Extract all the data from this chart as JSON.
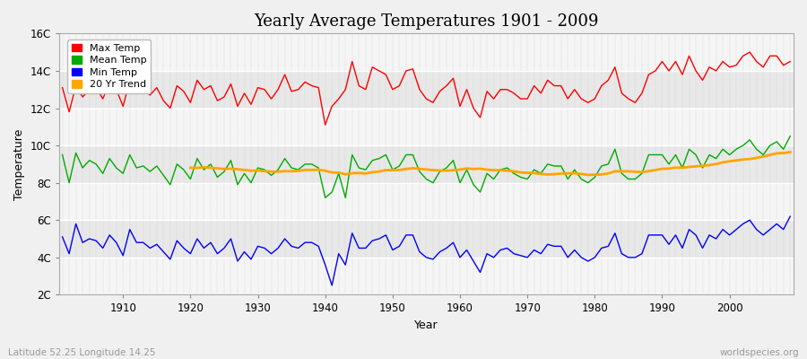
{
  "title": "Yearly Average Temperatures 1901 - 2009",
  "xlabel": "Year",
  "ylabel": "Temperature",
  "subtitle_left": "Latitude 52.25 Longitude 14.25",
  "subtitle_right": "worldspecies.org",
  "legend_entries": [
    "Max Temp",
    "Mean Temp",
    "Min Temp",
    "20 Yr Trend"
  ],
  "legend_colors": [
    "#ff0000",
    "#00aa00",
    "#0000ff",
    "#ffa500"
  ],
  "line_colors": [
    "#ff0000",
    "#00aa00",
    "#0000ff",
    "#ffa500"
  ],
  "years": [
    1901,
    1902,
    1903,
    1904,
    1905,
    1906,
    1907,
    1908,
    1909,
    1910,
    1911,
    1912,
    1913,
    1914,
    1915,
    1916,
    1917,
    1918,
    1919,
    1920,
    1921,
    1922,
    1923,
    1924,
    1925,
    1926,
    1927,
    1928,
    1929,
    1930,
    1931,
    1932,
    1933,
    1934,
    1935,
    1936,
    1937,
    1938,
    1939,
    1940,
    1941,
    1942,
    1943,
    1944,
    1945,
    1946,
    1947,
    1948,
    1949,
    1950,
    1951,
    1952,
    1953,
    1954,
    1955,
    1956,
    1957,
    1958,
    1959,
    1960,
    1961,
    1962,
    1963,
    1964,
    1965,
    1966,
    1967,
    1968,
    1969,
    1970,
    1971,
    1972,
    1973,
    1974,
    1975,
    1976,
    1977,
    1978,
    1979,
    1980,
    1981,
    1982,
    1983,
    1984,
    1985,
    1986,
    1987,
    1988,
    1989,
    1990,
    1991,
    1992,
    1993,
    1994,
    1995,
    1996,
    1997,
    1998,
    1999,
    2000,
    2001,
    2002,
    2003,
    2004,
    2005,
    2006,
    2007,
    2008,
    2009
  ],
  "max_temp": [
    13.1,
    11.8,
    13.2,
    12.6,
    13.0,
    13.1,
    12.5,
    13.4,
    13.0,
    12.1,
    13.5,
    12.8,
    13.0,
    12.7,
    13.1,
    12.4,
    12.0,
    13.2,
    12.9,
    12.3,
    13.5,
    13.0,
    13.2,
    12.4,
    12.6,
    13.3,
    12.1,
    12.8,
    12.2,
    13.1,
    13.0,
    12.5,
    13.0,
    13.8,
    12.9,
    13.0,
    13.4,
    13.2,
    13.1,
    11.1,
    12.1,
    12.5,
    13.0,
    14.5,
    13.2,
    13.0,
    14.2,
    14.0,
    13.8,
    13.0,
    13.2,
    14.0,
    14.1,
    13.0,
    12.5,
    12.3,
    12.9,
    13.2,
    13.6,
    12.1,
    13.0,
    12.0,
    11.5,
    12.9,
    12.5,
    13.0,
    13.0,
    12.8,
    12.5,
    12.5,
    13.2,
    12.8,
    13.5,
    13.2,
    13.2,
    12.5,
    13.0,
    12.5,
    12.3,
    12.5,
    13.2,
    13.5,
    14.2,
    12.8,
    12.5,
    12.3,
    12.8,
    13.8,
    14.0,
    14.5,
    14.0,
    14.5,
    13.8,
    14.8,
    14.0,
    13.5,
    14.2,
    14.0,
    14.5,
    14.2,
    14.3,
    14.8,
    15.0,
    14.5,
    14.2,
    14.8,
    14.8,
    14.3,
    14.5
  ],
  "mean_temp": [
    9.5,
    8.0,
    9.6,
    8.8,
    9.2,
    9.0,
    8.5,
    9.3,
    8.8,
    8.5,
    9.5,
    8.8,
    8.9,
    8.6,
    8.9,
    8.4,
    7.9,
    9.0,
    8.7,
    8.2,
    9.3,
    8.7,
    9.0,
    8.3,
    8.6,
    9.2,
    7.9,
    8.5,
    8.0,
    8.8,
    8.7,
    8.4,
    8.7,
    9.3,
    8.8,
    8.7,
    9.0,
    9.0,
    8.8,
    7.2,
    7.5,
    8.5,
    7.2,
    9.5,
    8.8,
    8.7,
    9.2,
    9.3,
    9.5,
    8.7,
    8.9,
    9.5,
    9.5,
    8.6,
    8.2,
    8.0,
    8.6,
    8.8,
    9.2,
    8.0,
    8.7,
    7.9,
    7.5,
    8.5,
    8.2,
    8.7,
    8.8,
    8.5,
    8.3,
    8.2,
    8.7,
    8.5,
    9.0,
    8.9,
    8.9,
    8.2,
    8.7,
    8.2,
    8.0,
    8.3,
    8.9,
    9.0,
    9.8,
    8.5,
    8.2,
    8.2,
    8.5,
    9.5,
    9.5,
    9.5,
    9.0,
    9.5,
    8.8,
    9.8,
    9.5,
    8.8,
    9.5,
    9.3,
    9.8,
    9.5,
    9.8,
    10.0,
    10.3,
    9.8,
    9.5,
    10.0,
    10.2,
    9.8,
    10.5
  ],
  "min_temp": [
    5.1,
    4.2,
    5.8,
    4.8,
    5.0,
    4.9,
    4.5,
    5.2,
    4.8,
    4.1,
    5.5,
    4.8,
    4.8,
    4.5,
    4.7,
    4.3,
    3.9,
    4.9,
    4.5,
    4.2,
    5.0,
    4.5,
    4.8,
    4.2,
    4.5,
    5.0,
    3.8,
    4.3,
    3.9,
    4.6,
    4.5,
    4.2,
    4.5,
    5.0,
    4.6,
    4.5,
    4.8,
    4.8,
    4.6,
    3.6,
    2.5,
    4.2,
    3.6,
    5.3,
    4.5,
    4.5,
    4.9,
    5.0,
    5.2,
    4.4,
    4.6,
    5.2,
    5.2,
    4.3,
    4.0,
    3.9,
    4.3,
    4.5,
    4.8,
    4.0,
    4.4,
    3.8,
    3.2,
    4.2,
    4.0,
    4.4,
    4.5,
    4.2,
    4.1,
    4.0,
    4.4,
    4.2,
    4.7,
    4.6,
    4.6,
    4.0,
    4.4,
    4.0,
    3.8,
    4.0,
    4.5,
    4.6,
    5.3,
    4.2,
    4.0,
    4.0,
    4.2,
    5.2,
    5.2,
    5.2,
    4.7,
    5.2,
    4.5,
    5.5,
    5.2,
    4.5,
    5.2,
    5.0,
    5.5,
    5.2,
    5.5,
    5.8,
    6.0,
    5.5,
    5.2,
    5.5,
    5.8,
    5.5,
    6.2
  ],
  "bg_color": "#f0f0f0",
  "plot_bg_color": "#e8e8e8",
  "grid_color_h": "#ffffff",
  "grid_color_v": "#cccccc",
  "ylim": [
    2,
    16
  ],
  "yticks": [
    2,
    4,
    6,
    8,
    10,
    12,
    14,
    16
  ],
  "ytick_labels": [
    "2C",
    "4C",
    "6C",
    "8C",
    "10C",
    "12C",
    "14C",
    "16C"
  ],
  "xtick_years": [
    1910,
    1920,
    1930,
    1940,
    1950,
    1960,
    1970,
    1980,
    1990,
    2000
  ],
  "hband_color": "#f5f5f5"
}
